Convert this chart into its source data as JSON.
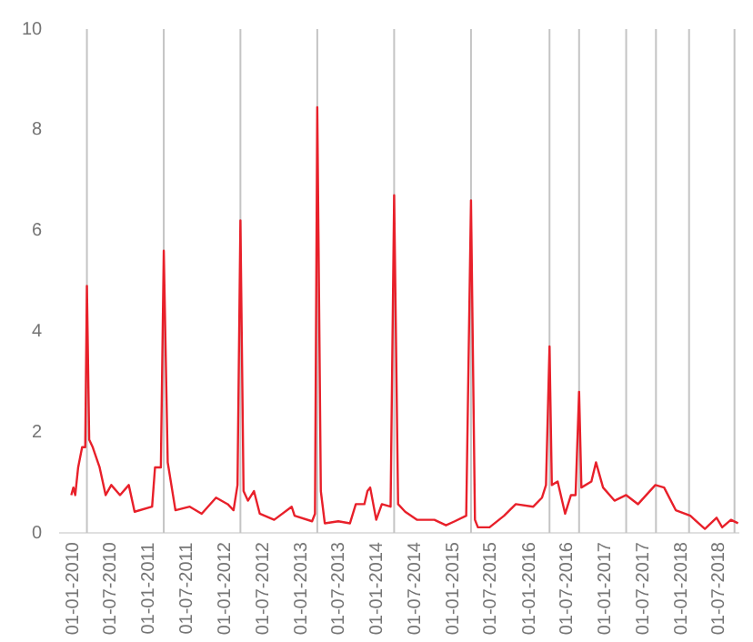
{
  "chart_data": {
    "type": "line",
    "x": [
      "2009-12-24",
      "2010-01-03",
      "2010-01-12",
      "2010-01-26",
      "2010-02-14",
      "2010-03-01",
      "2010-03-09",
      "2010-03-20",
      "2010-04-06",
      "2010-05-09",
      "2010-06-07",
      "2010-07-04",
      "2010-08-15",
      "2010-09-26",
      "2010-10-24",
      "2011-01-16",
      "2011-01-30",
      "2011-02-27",
      "2011-03-13",
      "2011-04-01",
      "2011-05-08",
      "2011-07-16",
      "2011-09-11",
      "2011-11-19",
      "2012-01-14",
      "2012-02-11",
      "2012-03-01",
      "2012-03-15",
      "2012-03-30",
      "2012-04-20",
      "2012-05-19",
      "2012-06-16",
      "2012-08-24",
      "2012-11-16",
      "2012-11-30",
      "2013-02-22",
      "2013-03-08",
      "2013-03-19",
      "2013-04-05",
      "2013-04-24",
      "2013-06-28",
      "2013-08-23",
      "2013-09-20",
      "2013-10-31",
      "2013-11-15",
      "2013-11-28",
      "2013-12-27",
      "2014-01-23",
      "2014-03-06",
      "2014-03-23",
      "2014-04-11",
      "2014-05-15",
      "2014-07-10",
      "2014-10-02",
      "2014-11-27",
      "2015-01-08",
      "2015-03-04",
      "2015-03-27",
      "2015-04-15",
      "2015-04-29",
      "2015-06-24",
      "2015-09-02",
      "2015-10-28",
      "2016-01-20",
      "2016-03-02",
      "2016-03-21",
      "2016-04-07",
      "2016-04-18",
      "2016-05-16",
      "2016-06-21",
      "2016-07-19",
      "2016-08-10",
      "2016-08-27",
      "2016-09-07",
      "2016-10-25",
      "2016-11-16",
      "2016-12-20",
      "2017-02-13",
      "2017-04-10",
      "2017-06-06",
      "2017-08-28",
      "2017-10-09",
      "2017-12-04",
      "2018-02-12",
      "2018-04-23",
      "2018-06-18",
      "2018-07-15",
      "2018-08-26",
      "2018-09-29"
    ],
    "series": [
      {
        "color": "#e8202a",
        "values": [
          0.75,
          0.9,
          0.75,
          1.3,
          1.7,
          1.7,
          4.9,
          1.85,
          1.7,
          1.3,
          0.75,
          0.95,
          0.75,
          0.95,
          0.42,
          0.52,
          1.3,
          1.3,
          5.6,
          1.4,
          0.45,
          0.52,
          0.38,
          0.7,
          0.57,
          0.45,
          0.95,
          6.2,
          0.83,
          0.64,
          0.83,
          0.38,
          0.26,
          0.52,
          0.34,
          0.23,
          0.38,
          8.45,
          0.83,
          0.19,
          0.23,
          0.19,
          0.57,
          0.57,
          0.83,
          0.9,
          0.26,
          0.57,
          0.52,
          6.7,
          0.57,
          0.42,
          0.26,
          0.26,
          0.15,
          0.23,
          0.34,
          6.6,
          0.26,
          0.11,
          0.11,
          0.34,
          0.57,
          0.52,
          0.7,
          0.95,
          3.7,
          0.95,
          1.02,
          0.38,
          0.75,
          0.75,
          2.8,
          0.9,
          1.02,
          1.4,
          0.9,
          0.64,
          0.75,
          0.57,
          0.95,
          0.9,
          0.45,
          0.34,
          0.08,
          0.3,
          0.11,
          0.26,
          0.19
        ]
      }
    ],
    "xlim": [
      "2009-11-01",
      "2018-10-01"
    ],
    "xticks": [
      {
        "value": "2010-01-01",
        "label": "01-01-2010"
      },
      {
        "value": "2010-07-01",
        "label": "01-07-2010"
      },
      {
        "value": "2011-01-01",
        "label": "01-01-2011"
      },
      {
        "value": "2011-07-01",
        "label": "01-07-2011"
      },
      {
        "value": "2012-01-01",
        "label": "01-01-2012"
      },
      {
        "value": "2012-07-01",
        "label": "01-07-2012"
      },
      {
        "value": "2013-01-01",
        "label": "01-01-2013"
      },
      {
        "value": "2013-07-01",
        "label": "01-07-2013"
      },
      {
        "value": "2014-01-01",
        "label": "01-01-2014"
      },
      {
        "value": "2014-07-01",
        "label": "01-07-2014"
      },
      {
        "value": "2015-01-01",
        "label": "01-01-2015"
      },
      {
        "value": "2015-07-01",
        "label": "01-07-2015"
      },
      {
        "value": "2016-01-01",
        "label": "01-01-2016"
      },
      {
        "value": "2016-07-01",
        "label": "01-07-2016"
      },
      {
        "value": "2017-01-01",
        "label": "01-01-2017"
      },
      {
        "value": "2017-07-01",
        "label": "01-07-2017"
      },
      {
        "value": "2018-01-01",
        "label": "01-01-2018"
      },
      {
        "value": "2018-07-01",
        "label": "01-07-2018"
      }
    ],
    "ylim": [
      0,
      10
    ],
    "yticks": [
      0,
      2,
      4,
      6,
      8,
      10
    ],
    "grid": false,
    "legend": false,
    "marker": "none",
    "line_style": "solid",
    "ref_lines": [
      {
        "axis": "x",
        "value": "2010-03-09",
        "color": "#c4c4c4"
      },
      {
        "axis": "x",
        "value": "2011-03-13",
        "color": "#c4c4c4"
      },
      {
        "axis": "x",
        "value": "2012-03-15",
        "color": "#c4c4c4"
      },
      {
        "axis": "x",
        "value": "2013-03-19",
        "color": "#c4c4c4"
      },
      {
        "axis": "x",
        "value": "2014-03-23",
        "color": "#c4c4c4"
      },
      {
        "axis": "x",
        "value": "2015-03-27",
        "color": "#c4c4c4"
      },
      {
        "axis": "x",
        "value": "2016-04-07",
        "color": "#c4c4c4"
      },
      {
        "axis": "x",
        "value": "2016-08-27",
        "color": "#c4c4c4"
      },
      {
        "axis": "x",
        "value": "2017-04-10",
        "color": "#c4c4c4"
      },
      {
        "axis": "x",
        "value": "2017-08-31",
        "color": "#c4c4c4"
      },
      {
        "axis": "x",
        "value": "2018-02-06",
        "color": "#c4c4c4"
      },
      {
        "axis": "x",
        "value": "2018-09-12",
        "color": "#c4c4c4"
      }
    ]
  }
}
